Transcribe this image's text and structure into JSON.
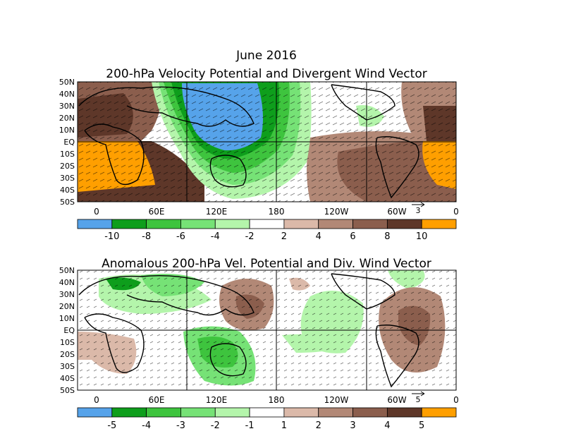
{
  "figure": {
    "date_title": "June 2016"
  },
  "panels": [
    {
      "title": "200-hPa Velocity Potential and Divergent Wind Vector",
      "lat_labels": [
        "50N",
        "40N",
        "30N",
        "20N",
        "10N",
        "EQ",
        "10S",
        "20S",
        "30S",
        "40S",
        "50S"
      ],
      "lon_labels": [
        "0",
        "60E",
        "120E",
        "180",
        "120W",
        "60W",
        "0"
      ],
      "vector_ref_label": "3",
      "colorbar": {
        "colors": [
          "#56a3ea",
          "#0e9e1c",
          "#3ec43e",
          "#76e276",
          "#b4f5ab",
          "#ffffff",
          "#dbb9a9",
          "#b28876",
          "#8b5e4d",
          "#5e3729",
          "#ff9f00"
        ],
        "labels": [
          "-10",
          "-8",
          "-6",
          "-4",
          "-2",
          "2",
          "4",
          "6",
          "8",
          "10"
        ]
      }
    },
    {
      "title": "Anomalous 200-hPa Vel. Potential and Div. Wind Vector",
      "lat_labels": [
        "50N",
        "40N",
        "30N",
        "20N",
        "10N",
        "EQ",
        "10S",
        "20S",
        "30S",
        "40S",
        "50S"
      ],
      "lon_labels": [
        "0",
        "60E",
        "120E",
        "180",
        "120W",
        "60W",
        "0"
      ],
      "vector_ref_label": "5",
      "colorbar": {
        "colors": [
          "#56a3ea",
          "#0e9e1c",
          "#3ec43e",
          "#76e276",
          "#b4f5ab",
          "#ffffff",
          "#dbb9a9",
          "#b28876",
          "#8b5e4d",
          "#5e3729",
          "#ff9f00"
        ],
        "labels": [
          "-5",
          "-4",
          "-3",
          "-2",
          "-1",
          "1",
          "2",
          "3",
          "4",
          "5"
        ]
      }
    }
  ]
}
